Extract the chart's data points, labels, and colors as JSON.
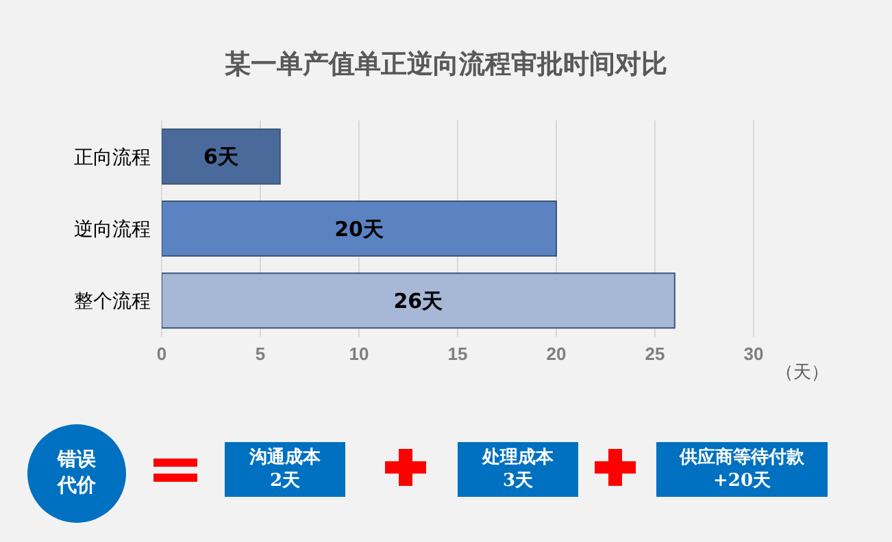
{
  "chart_data": {
    "type": "bar",
    "orientation": "horizontal",
    "title": "某一单产值单正逆向流程审批时间对比",
    "xlabel": "（天）",
    "categories": [
      "正向流程",
      "逆向流程",
      "整个流程"
    ],
    "values": [
      6,
      20,
      26
    ],
    "colors": [
      "#4a6a9c",
      "#5b83c2",
      "#a7b7d6"
    ],
    "value_labels": [
      "6天",
      "20天",
      "26天"
    ],
    "xlim": [
      0,
      30
    ],
    "xticks": [
      0,
      5,
      10,
      15,
      20,
      25,
      30
    ],
    "grid": "x",
    "annotations": [
      "错误代价",
      "沟通成本\n2天",
      "处理成本\n3天",
      "供应商等待付款\n+20天"
    ]
  }
}
